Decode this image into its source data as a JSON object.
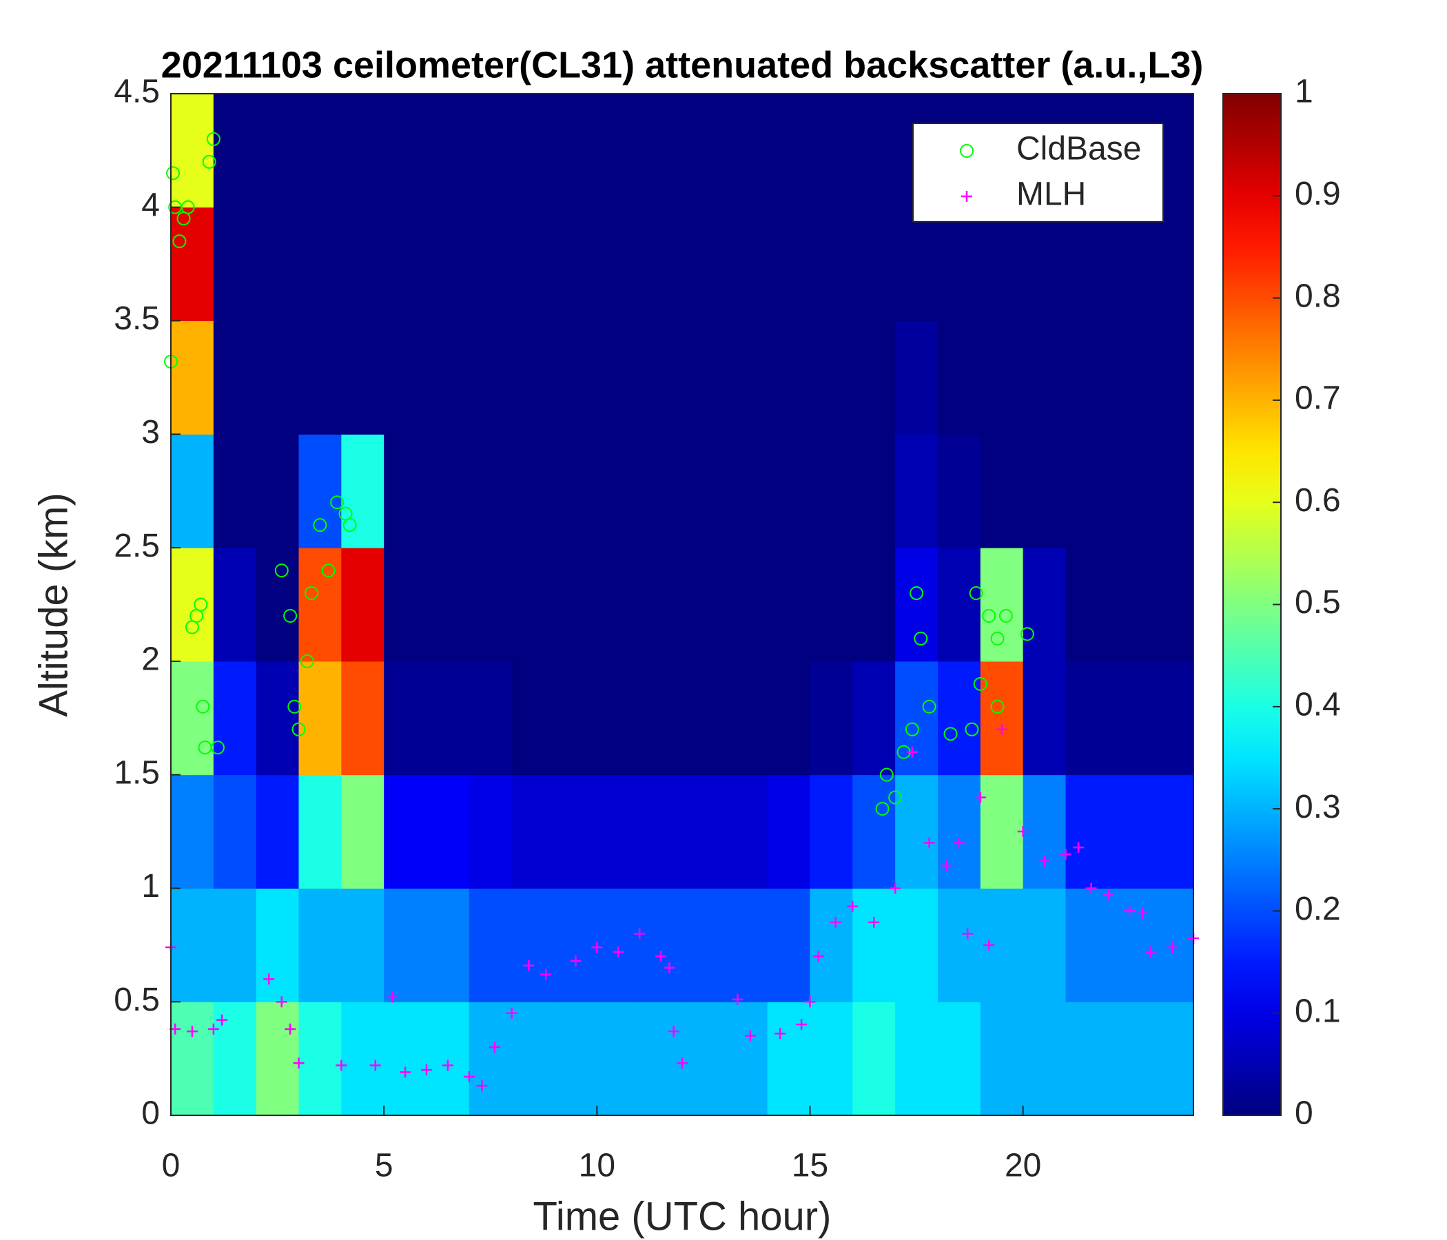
{
  "chart_data": {
    "type": "heatmap",
    "title": "20211103 ceilometer(CL31) attenuated backscatter (a.u.,L3)",
    "xlabel": "Time (UTC hour)",
    "ylabel": "Altitude (km)",
    "xlim": [
      0,
      24
    ],
    "ylim": [
      0,
      4.5
    ],
    "xticks": [
      0,
      5,
      10,
      15,
      20
    ],
    "yticks": [
      0,
      0.5,
      1,
      1.5,
      2,
      2.5,
      3,
      3.5,
      4,
      4.5
    ],
    "colormap": "jet",
    "clim": [
      0,
      1
    ],
    "cticks": [
      0,
      0.1,
      0.2,
      0.3,
      0.4,
      0.5,
      0.6,
      0.7,
      0.8,
      0.9,
      1
    ],
    "x_edges": [
      0,
      1,
      2,
      3,
      4,
      5,
      6,
      7,
      8,
      9,
      10,
      11,
      12,
      13,
      14,
      15,
      16,
      17,
      18,
      19,
      20,
      21,
      22,
      23,
      24
    ],
    "y_edges": [
      0,
      0.5,
      1,
      1.5,
      2,
      2.5,
      3,
      3.5,
      4,
      4.5
    ],
    "z": [
      [
        0.45,
        0.4,
        0.5,
        0.4,
        0.35,
        0.35,
        0.35,
        0.3,
        0.3,
        0.3,
        0.3,
        0.3,
        0.3,
        0.3,
        0.35,
        0.35,
        0.4,
        0.35,
        0.35,
        0.3,
        0.3,
        0.3,
        0.3,
        0.3
      ],
      [
        0.3,
        0.3,
        0.35,
        0.3,
        0.3,
        0.25,
        0.25,
        0.2,
        0.2,
        0.2,
        0.2,
        0.2,
        0.2,
        0.2,
        0.2,
        0.3,
        0.35,
        0.35,
        0.3,
        0.3,
        0.3,
        0.25,
        0.25,
        0.25
      ],
      [
        0.25,
        0.2,
        0.15,
        0.4,
        0.5,
        0.12,
        0.12,
        0.1,
        0.08,
        0.08,
        0.08,
        0.08,
        0.08,
        0.08,
        0.1,
        0.15,
        0.2,
        0.3,
        0.25,
        0.5,
        0.25,
        0.15,
        0.15,
        0.15
      ],
      [
        0.5,
        0.15,
        0.05,
        0.7,
        0.8,
        0.02,
        0.02,
        0.02,
        0,
        0,
        0,
        0,
        0,
        0,
        0,
        0.02,
        0.05,
        0.2,
        0.15,
        0.8,
        0.05,
        0.02,
        0.02,
        0.02
      ],
      [
        0.6,
        0.05,
        0,
        0.8,
        0.9,
        0,
        0,
        0,
        0,
        0,
        0,
        0,
        0,
        0,
        0,
        0,
        0,
        0.1,
        0.05,
        0.5,
        0.05,
        0,
        0,
        0
      ],
      [
        0.3,
        0,
        0,
        0.2,
        0.4,
        0,
        0,
        0,
        0,
        0,
        0,
        0,
        0,
        0,
        0,
        0,
        0,
        0.05,
        0.02,
        0,
        0,
        0,
        0,
        0
      ],
      [
        0.7,
        0,
        0,
        0,
        0,
        0,
        0,
        0,
        0,
        0,
        0,
        0,
        0,
        0,
        0,
        0,
        0,
        0.03,
        0,
        0,
        0,
        0,
        0,
        0
      ],
      [
        0.9,
        0,
        0,
        0,
        0,
        0,
        0,
        0,
        0,
        0,
        0,
        0,
        0,
        0,
        0,
        0,
        0,
        0,
        0,
        0,
        0,
        0,
        0,
        0
      ],
      [
        0.6,
        0,
        0,
        0,
        0,
        0,
        0,
        0,
        0,
        0,
        0,
        0,
        0,
        0,
        0,
        0,
        0,
        0,
        0,
        0,
        0,
        0,
        0,
        0
      ]
    ],
    "legend": "upper right",
    "series": [
      {
        "name": "CldBase",
        "color": "#00ff00",
        "marker": "circle",
        "x": [
          0,
          0.05,
          0.1,
          0.2,
          0.3,
          0.4,
          0.5,
          0.6,
          0.7,
          0.75,
          0.8,
          0.9,
          1.0,
          1.1,
          2.6,
          2.8,
          2.9,
          3.0,
          3.2,
          3.3,
          3.5,
          3.7,
          3.9,
          4.1,
          4.2,
          16.7,
          16.8,
          17.0,
          17.2,
          17.4,
          17.5,
          17.6,
          17.8,
          18.3,
          18.8,
          18.9,
          19.0,
          19.2,
          19.4,
          19.6,
          19.4,
          20.1
        ],
        "y": [
          3.32,
          4.15,
          4.0,
          3.85,
          3.95,
          4.0,
          2.15,
          2.2,
          2.25,
          1.8,
          1.62,
          4.2,
          4.3,
          1.62,
          2.4,
          2.2,
          1.8,
          1.7,
          2.0,
          2.3,
          2.6,
          2.4,
          2.7,
          2.65,
          2.6,
          1.35,
          1.5,
          1.4,
          1.6,
          1.7,
          2.3,
          2.1,
          1.8,
          1.68,
          1.7,
          2.3,
          1.9,
          2.2,
          2.1,
          2.2,
          1.8,
          2.12
        ]
      },
      {
        "name": "MLH",
        "color": "#ff00ff",
        "marker": "plus",
        "x": [
          0,
          0.1,
          0.5,
          1.0,
          1.2,
          2.3,
          2.6,
          2.8,
          3.0,
          4,
          4.8,
          5.2,
          5.5,
          6.0,
          6.5,
          7.0,
          7.3,
          7.6,
          8.0,
          8.4,
          8.8,
          9.5,
          10,
          10.5,
          11,
          11.5,
          11.7,
          11.8,
          12,
          13.3,
          13.6,
          14.3,
          14.8,
          15.0,
          15.2,
          15.6,
          16,
          16.5,
          17,
          17.4,
          17.8,
          18.2,
          18.5,
          18.7,
          19.0,
          19.2,
          19.5,
          20,
          20.5,
          21,
          21.3,
          21.6,
          22,
          22.5,
          22.8,
          23,
          23.5,
          24
        ],
        "y": [
          0.74,
          0.38,
          0.37,
          0.38,
          0.42,
          0.6,
          0.5,
          0.38,
          0.23,
          0.22,
          0.22,
          0.52,
          0.19,
          0.2,
          0.22,
          0.17,
          0.13,
          0.3,
          0.45,
          0.66,
          0.62,
          0.68,
          0.74,
          0.72,
          0.8,
          0.7,
          0.65,
          0.37,
          0.23,
          0.51,
          0.35,
          0.36,
          0.4,
          0.5,
          0.7,
          0.85,
          0.92,
          0.85,
          1.0,
          1.6,
          1.2,
          1.1,
          1.2,
          0.8,
          1.4,
          0.75,
          1.7,
          1.25,
          1.12,
          1.15,
          1.18,
          1.0,
          0.97,
          0.9,
          0.89,
          0.72,
          0.74,
          0.78
        ]
      }
    ]
  }
}
